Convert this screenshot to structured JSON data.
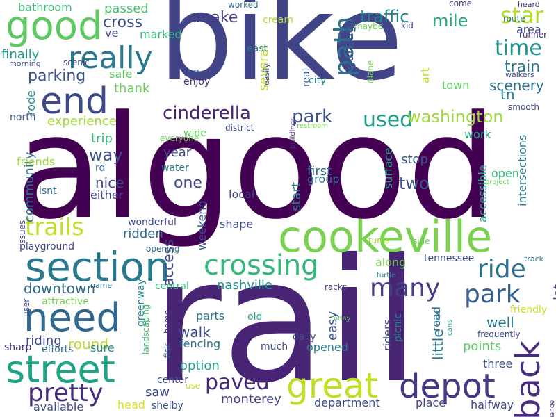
{
  "words": [
    {
      "text": "algood",
      "color": "#440154",
      "orientation": "horizontal"
    },
    {
      "text": "rail",
      "color": "#482475",
      "orientation": "horizontal"
    },
    {
      "text": "bike",
      "color": "#414487",
      "orientation": "horizontal"
    },
    {
      "text": "cookeville",
      "color": "#7ad151",
      "orientation": "horizontal"
    },
    {
      "text": "section",
      "color": "#2a788e",
      "orientation": "horizontal"
    },
    {
      "text": "good",
      "color": "#5ec962",
      "orientation": "horizontal"
    },
    {
      "text": "need",
      "color": "#31688e",
      "orientation": "horizontal"
    },
    {
      "text": "street",
      "color": "#20a486",
      "orientation": "horizontal"
    },
    {
      "text": "end",
      "color": "#3e4989",
      "orientation": "horizontal"
    },
    {
      "text": "great",
      "color": "#bddf26",
      "orientation": "horizontal"
    },
    {
      "text": "depot",
      "color": "#443983",
      "orientation": "horizontal"
    },
    {
      "text": "really",
      "color": "#2a788e",
      "orientation": "horizontal"
    },
    {
      "text": "crossing",
      "color": "#35b779",
      "orientation": "horizontal"
    },
    {
      "text": "pretty",
      "color": "#472d7b",
      "orientation": "horizontal"
    },
    {
      "text": "back",
      "color": "#472d7b",
      "orientation": "vertical"
    },
    {
      "text": "many",
      "color": "#433e85",
      "orientation": "horizontal"
    },
    {
      "text": "park",
      "color": "#355f8d",
      "orientation": "horizontal"
    },
    {
      "text": "ride",
      "color": "#2d708e",
      "orientation": "horizontal"
    },
    {
      "text": "trails",
      "color": "#bddf26",
      "orientation": "horizontal"
    },
    {
      "text": "paved",
      "color": "#482878",
      "orientation": "horizontal"
    },
    {
      "text": "star",
      "color": "#b5de2b",
      "orientation": "horizontal"
    },
    {
      "text": "time",
      "color": "#21918c",
      "orientation": "horizontal"
    },
    {
      "text": "path",
      "color": "#2c728e",
      "orientation": "vertical"
    },
    {
      "text": "used",
      "color": "#1f9e89",
      "orientation": "horizontal"
    },
    {
      "text": "cinderella",
      "color": "#482475",
      "orientation": "horizontal"
    },
    {
      "text": "park",
      "color": "#3b528b",
      "orientation": "horizontal"
    },
    {
      "text": "washington",
      "color": "#9fda3a",
      "orientation": "horizontal"
    },
    {
      "text": "traffic",
      "color": "#26828e",
      "orientation": "horizontal"
    },
    {
      "text": "mile",
      "color": "#25ab82",
      "orientation": "horizontal"
    },
    {
      "text": "train",
      "color": "#2a788e",
      "orientation": "horizontal"
    },
    {
      "text": "tn",
      "color": "#287d8e",
      "orientation": "horizontal"
    },
    {
      "text": "scenery",
      "color": "#2c728e",
      "orientation": "horizontal"
    },
    {
      "text": "parking",
      "color": "#3b528b",
      "orientation": "horizontal"
    },
    {
      "text": "make",
      "color": "#443983",
      "orientation": "horizontal"
    },
    {
      "text": "cross",
      "color": "#3b528b",
      "orientation": "horizontal"
    },
    {
      "text": "passed",
      "color": "#4ac16d",
      "orientation": "horizontal"
    },
    {
      "text": "bathroom",
      "color": "#3aba76",
      "orientation": "horizontal"
    },
    {
      "text": "garbage",
      "color": "#3b528b",
      "orientation": "vertical"
    },
    {
      "text": "several",
      "color": "#bddf26",
      "orientation": "vertical"
    },
    {
      "text": "art",
      "color": "#bddf26",
      "orientation": "vertical"
    },
    {
      "text": "town",
      "color": "#5ec962",
      "orientation": "horizontal"
    },
    {
      "text": "city",
      "color": "#26828e",
      "orientation": "horizontal"
    },
    {
      "text": "real",
      "color": "#355f8d",
      "orientation": "vertical"
    },
    {
      "text": "thank",
      "color": "#6ece58",
      "orientation": "horizontal"
    },
    {
      "text": "safe",
      "color": "#5ec962",
      "orientation": "horizontal"
    },
    {
      "text": "ice",
      "color": "#3b528b",
      "orientation": "horizontal"
    },
    {
      "text": "enjoy",
      "color": "#46337e",
      "orientation": "horizontal"
    },
    {
      "text": "rode",
      "color": "#238a8d",
      "orientation": "vertical"
    },
    {
      "text": "experience",
      "color": "#a5db36",
      "orientation": "horizontal"
    },
    {
      "text": "trip",
      "color": "#35b779",
      "orientation": "horizontal"
    },
    {
      "text": "way",
      "color": "#3b528b",
      "orientation": "horizontal"
    },
    {
      "text": "year",
      "color": "#404688",
      "orientation": "horizontal"
    },
    {
      "text": "community",
      "color": "#2c728e",
      "orientation": "vertical"
    },
    {
      "text": "nice",
      "color": "#404688",
      "orientation": "horizontal"
    },
    {
      "text": "one",
      "color": "#3e4989",
      "orientation": "horizontal"
    },
    {
      "text": "two",
      "color": "#3b528b",
      "orientation": "horizontal"
    },
    {
      "text": "stop",
      "color": "#3b528b",
      "orientation": "horizontal"
    },
    {
      "text": "first",
      "color": "#2d708e",
      "orientation": "horizontal"
    },
    {
      "text": "group",
      "color": "#2c728e",
      "orientation": "horizontal"
    },
    {
      "text": "local",
      "color": "#414487",
      "orientation": "horizontal"
    },
    {
      "text": "start",
      "color": "#2a788e",
      "orientation": "vertical"
    },
    {
      "text": "surface",
      "color": "#21a685",
      "orientation": "vertical"
    },
    {
      "text": "accessible",
      "color": "#25ab82",
      "orientation": "vertical"
    },
    {
      "text": "intersections",
      "color": "#287d8e",
      "orientation": "vertical"
    },
    {
      "text": "open",
      "color": "#35b779",
      "orientation": "horizontal"
    },
    {
      "text": "work",
      "color": "#22a884",
      "orientation": "horizontal"
    },
    {
      "text": "water",
      "color": "#2a788e",
      "orientation": "horizontal"
    },
    {
      "text": "friends",
      "color": "#a0da39",
      "orientation": "horizontal"
    },
    {
      "text": "ridden",
      "color": "#31688e",
      "orientation": "horizontal"
    },
    {
      "text": "shape",
      "color": "#404688",
      "orientation": "horizontal"
    },
    {
      "text": "weekend",
      "color": "#3b528b",
      "orientation": "vertical"
    },
    {
      "text": "wonderful",
      "color": "#3e4989",
      "orientation": "horizontal"
    },
    {
      "text": "either",
      "color": "#404688",
      "orientation": "horizontal"
    },
    {
      "text": "isnt",
      "color": "#31688e",
      "orientation": "horizontal"
    },
    {
      "text": "rd",
      "color": "#31688e",
      "orientation": "horizontal"
    },
    {
      "text": "wide",
      "color": "#5ec962",
      "orientation": "horizontal"
    },
    {
      "text": "everyone",
      "color": "#6ece58",
      "orientation": "horizontal"
    },
    {
      "text": "district",
      "color": "#3e4989",
      "orientation": "horizontal"
    },
    {
      "text": "buildings",
      "color": "#472d7b",
      "orientation": "vertical"
    },
    {
      "text": "restroom",
      "color": "#7ad151",
      "orientation": "horizontal"
    },
    {
      "text": "north",
      "color": "#3b528b",
      "orientation": "horizontal"
    },
    {
      "text": "playground",
      "color": "#404688",
      "orientation": "horizontal"
    },
    {
      "text": "issues",
      "color": "#404688",
      "orientation": "vertical"
    },
    {
      "text": "opening",
      "color": "#31688e",
      "orientation": "horizontal"
    },
    {
      "text": "downtown",
      "color": "#31688e",
      "orientation": "horizontal"
    },
    {
      "text": "access",
      "color": "#3e4989",
      "orientation": "vertical"
    },
    {
      "text": "round",
      "color": "#b5de2b",
      "orientation": "horizontal"
    },
    {
      "text": "riding",
      "color": "#3e4989",
      "orientation": "horizontal"
    },
    {
      "text": "greenway",
      "color": "#238a8d",
      "orientation": "vertical"
    },
    {
      "text": "central",
      "color": "#3aba76",
      "orientation": "horizontal"
    },
    {
      "text": "nashville",
      "color": "#21918c",
      "orientation": "horizontal"
    },
    {
      "text": "along",
      "color": "#7ad151",
      "orientation": "horizontal"
    },
    {
      "text": "tennessee",
      "color": "#3e4989",
      "orientation": "horizontal"
    },
    {
      "text": "turtle",
      "color": "#21918c",
      "orientation": "horizontal"
    },
    {
      "text": "easy",
      "color": "#3b528b",
      "orientation": "vertical"
    },
    {
      "text": "riders",
      "color": "#404688",
      "orientation": "vertical"
    },
    {
      "text": "picnic",
      "color": "#238a8d",
      "orientation": "vertical"
    },
    {
      "text": "road",
      "color": "#2c728e",
      "orientation": "vertical"
    },
    {
      "text": "little",
      "color": "#2a788e",
      "orientation": "vertical"
    },
    {
      "text": "well",
      "color": "#2a788e",
      "orientation": "horizontal"
    },
    {
      "text": "lot",
      "color": "#404688",
      "orientation": "vertical"
    },
    {
      "text": "points",
      "color": "#5ec962",
      "orientation": "horizontal"
    },
    {
      "text": "three",
      "color": "#3b528b",
      "orientation": "horizontal"
    },
    {
      "text": "railroad",
      "color": "#404688",
      "orientation": "vertical"
    },
    {
      "text": "frequently",
      "color": "#3e4989",
      "orientation": "horizontal"
    },
    {
      "text": "friendly",
      "color": "#c8e020",
      "orientation": "horizontal"
    },
    {
      "text": "change",
      "color": "#404688",
      "orientation": "vertical"
    },
    {
      "text": "track",
      "color": "#2c728e",
      "orientation": "horizontal"
    },
    {
      "text": "walk",
      "color": "#3e4989",
      "orientation": "horizontal"
    },
    {
      "text": "parts",
      "color": "#2a788e",
      "orientation": "horizontal"
    },
    {
      "text": "old",
      "color": "#22a884",
      "orientation": "horizontal"
    },
    {
      "text": "fencing",
      "color": "#2c728e",
      "orientation": "horizontal"
    },
    {
      "text": "option",
      "color": "#1f9e89",
      "orientation": "horizontal"
    },
    {
      "text": "daily",
      "color": "#3e4989",
      "orientation": "horizontal"
    },
    {
      "text": "opened",
      "color": "#2a788e",
      "orientation": "horizontal"
    },
    {
      "text": "much",
      "color": "#3e4989",
      "orientation": "horizontal"
    },
    {
      "text": "center",
      "color": "#3e4989",
      "orientation": "horizontal"
    },
    {
      "text": "saw",
      "color": "#3e4989",
      "orientation": "horizontal"
    },
    {
      "text": "monterey",
      "color": "#414487",
      "orientation": "horizontal"
    },
    {
      "text": "department",
      "color": "#3e4989",
      "orientation": "horizontal"
    },
    {
      "text": "place",
      "color": "#414487",
      "orientation": "horizontal"
    },
    {
      "text": "halfway",
      "color": "#3e4989",
      "orientation": "horizontal"
    },
    {
      "text": "shelby",
      "color": "#3b528b",
      "orientation": "horizontal"
    },
    {
      "text": "head",
      "color": "#d8e219",
      "orientation": "horizontal"
    },
    {
      "text": "available",
      "color": "#3e4989",
      "orientation": "horizontal"
    },
    {
      "text": "sharp",
      "color": "#46337e",
      "orientation": "horizontal"
    },
    {
      "text": "efforts",
      "color": "#31688e",
      "orientation": "horizontal"
    },
    {
      "text": "sure",
      "color": "#238a8d",
      "orientation": "horizontal"
    },
    {
      "text": "attractive",
      "color": "#7ad151",
      "orientation": "horizontal"
    },
    {
      "text": "name",
      "color": "#2a788e",
      "orientation": "horizontal"
    },
    {
      "text": "user",
      "color": "#404688",
      "orientation": "vertical"
    },
    {
      "text": "landscaping",
      "color": "#3aba76",
      "orientation": "vertical"
    },
    {
      "text": "home",
      "color": "#46337e",
      "orientation": "vertical"
    },
    {
      "text": "fisk",
      "color": "#31688e",
      "orientation": "vertical"
    },
    {
      "text": "use",
      "color": "#bddf26",
      "orientation": "horizontal"
    },
    {
      "text": "today",
      "color": "#5ec962",
      "orientation": "horizontal"
    },
    {
      "text": "cans",
      "color": "#1f9e89",
      "orientation": "vertical"
    },
    {
      "text": "give",
      "color": "#31688e",
      "orientation": "vertical"
    },
    {
      "text": "turns",
      "color": "#a0da39",
      "orientation": "horizontal"
    },
    {
      "text": "side",
      "color": "#6ece58",
      "orientation": "horizontal"
    },
    {
      "text": "project",
      "color": "#6ece58",
      "orientation": "horizontal"
    },
    {
      "text": "racks",
      "color": "#3e4989",
      "orientation": "horizontal"
    },
    {
      "text": "smooth",
      "color": "#3e4989",
      "orientation": "horizontal"
    },
    {
      "text": "walkers",
      "color": "#3e4989",
      "orientation": "horizontal"
    },
    {
      "text": "runner",
      "color": "#472d7b",
      "orientation": "horizontal"
    },
    {
      "text": "route",
      "color": "#2a788e",
      "orientation": "horizontal"
    },
    {
      "text": "area",
      "color": "#3e4989",
      "orientation": "horizontal"
    },
    {
      "text": "heard",
      "color": "#46337e",
      "orientation": "horizontal"
    },
    {
      "text": "come",
      "color": "#46337e",
      "orientation": "horizontal"
    },
    {
      "text": "kid",
      "color": "#3e4989",
      "orientation": "horizontal"
    },
    {
      "text": "maybe",
      "color": "#6ece58",
      "orientation": "horizontal"
    },
    {
      "text": "worked",
      "color": "#2c728e",
      "orientation": "horizontal"
    },
    {
      "text": "cream",
      "color": "#b5de2b",
      "orientation": "horizontal"
    },
    {
      "text": "east",
      "color": "#2c728e",
      "orientation": "horizontal"
    },
    {
      "text": "easily",
      "color": "#3e4989",
      "orientation": "vertical"
    },
    {
      "text": "diane",
      "color": "#7ad151",
      "orientation": "vertical"
    },
    {
      "text": "scenic",
      "color": "#3e4989",
      "orientation": "horizontal"
    },
    {
      "text": "morning",
      "color": "#3b528b",
      "orientation": "horizontal"
    },
    {
      "text": "finally",
      "color": "#1f9e89",
      "orientation": "horizontal"
    },
    {
      "text": "marked",
      "color": "#35b779",
      "orientation": "horizontal"
    },
    {
      "text": "ve",
      "color": "#3b528b",
      "orientation": "horizontal"
    }
  ]
}
